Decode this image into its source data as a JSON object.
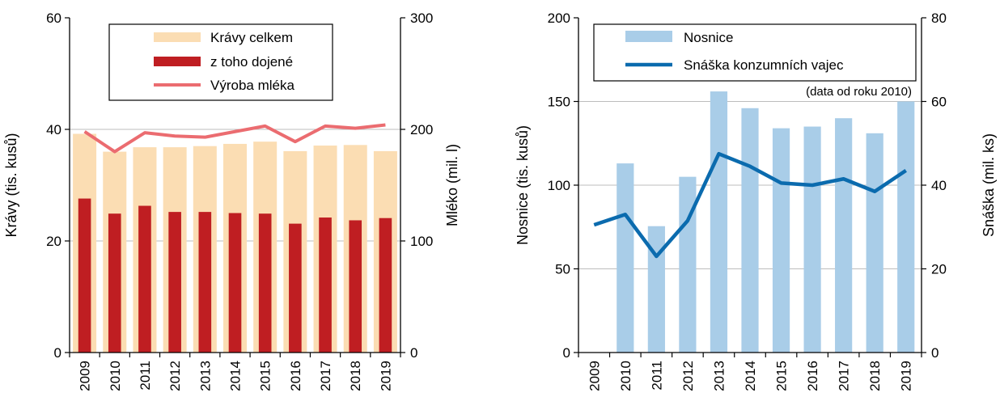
{
  "charts": [
    {
      "type": "bar+line",
      "categories": [
        "2009",
        "2010",
        "2011",
        "2012",
        "2013",
        "2014",
        "2015",
        "2016",
        "2017",
        "2018",
        "2019"
      ],
      "series": [
        {
          "name": "Krávy celkem",
          "kind": "bar",
          "axis": "left",
          "color": "#FBDDB3",
          "values": [
            39.2,
            36.0,
            36.8,
            36.8,
            37.0,
            37.4,
            37.8,
            36.1,
            37.1,
            37.2,
            36.1
          ]
        },
        {
          "name": "z toho dojené",
          "kind": "bar",
          "axis": "left",
          "color": "#BF1E22",
          "values": [
            27.6,
            24.9,
            26.3,
            25.2,
            25.2,
            25.0,
            24.9,
            23.1,
            24.2,
            23.7,
            24.1
          ]
        },
        {
          "name": "Výroba mléka",
          "kind": "line",
          "axis": "right",
          "color": "#EB6C70",
          "values": [
            198,
            180,
            197,
            194,
            193,
            198,
            203,
            189,
            203,
            201,
            204
          ]
        }
      ],
      "ylabel": "Krávy (tis. kusů)",
      "y2label": "Mléko (mil. l)",
      "ylim": [
        0,
        60
      ],
      "y2lim": [
        0,
        300
      ],
      "yticks": [
        "0",
        "20",
        "40",
        "60"
      ],
      "y2ticks": [
        "0",
        "100",
        "200",
        "300"
      ],
      "grid": true,
      "legend": "top-center"
    },
    {
      "type": "bar+line",
      "categories": [
        "2009",
        "2010",
        "2011",
        "2012",
        "2013",
        "2014",
        "2015",
        "2016",
        "2017",
        "2018",
        "2019"
      ],
      "series": [
        {
          "name": "Nosnice",
          "kind": "bar",
          "axis": "left",
          "color": "#A9CDE8",
          "values": [
            null,
            113,
            75.5,
            105,
            156,
            146,
            134,
            135,
            140,
            131,
            150
          ]
        },
        {
          "name": "Snáška konzumních vajec",
          "kind": "line",
          "axis": "right",
          "color": "#0B6BAE",
          "values": [
            30.5,
            33,
            23,
            31.5,
            47.5,
            44.5,
            40.5,
            40,
            41.5,
            38.5,
            43.5
          ]
        }
      ],
      "ylabel": "Nosnice (tis. kusů)",
      "y2label": "Snáška (mil. ks)",
      "ylim": [
        0,
        200
      ],
      "y2lim": [
        0,
        80
      ],
      "yticks": [
        "0",
        "50",
        "100",
        "150",
        "200"
      ],
      "y2ticks": [
        "0",
        "20",
        "40",
        "60",
        "80"
      ],
      "note": "(data od roku 2010)",
      "grid": true,
      "legend": "top-center"
    }
  ]
}
